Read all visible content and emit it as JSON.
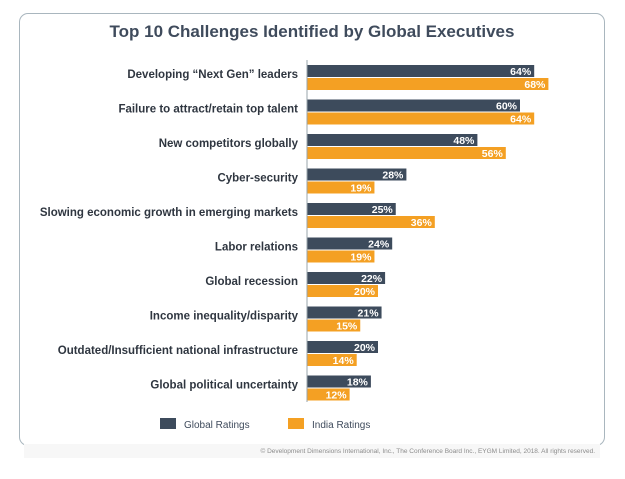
{
  "chart_data": {
    "type": "bar",
    "orientation": "horizontal",
    "title": "Top 10 Challenges Identified by Global Executives",
    "categories": [
      "Developing “Next Gen” leaders",
      "Failure to attract/retain top talent",
      "New competitors globally",
      "Cyber-security",
      "Slowing economic growth in emerging markets",
      "Labor relations",
      "Global recession",
      "Income inequality/disparity",
      "Outdated/Insufficient national infrastructure",
      "Global political uncertainty"
    ],
    "series": [
      {
        "name": "Global Ratings",
        "color": "#3d4b5c",
        "values": [
          64,
          60,
          48,
          28,
          25,
          24,
          22,
          21,
          20,
          18
        ],
        "labels": [
          "64%",
          "60%",
          "48%",
          "28%",
          "25%",
          "24%",
          "22%",
          "21%",
          "20%",
          "18%"
        ]
      },
      {
        "name": "India Ratings",
        "color": "#f4a023",
        "values": [
          68,
          64,
          56,
          19,
          36,
          19,
          20,
          15,
          14,
          12
        ],
        "labels": [
          "68%",
          "64%",
          "56%",
          "19%",
          "36%",
          "19%",
          "20%",
          "15%",
          "14%",
          "12%"
        ]
      }
    ],
    "legend_position": "bottom-left",
    "grid": false
  },
  "footer": "© Development Dimensions International, Inc., The Conference Board Inc., EYGM Limited, 2018. All rights reserved."
}
